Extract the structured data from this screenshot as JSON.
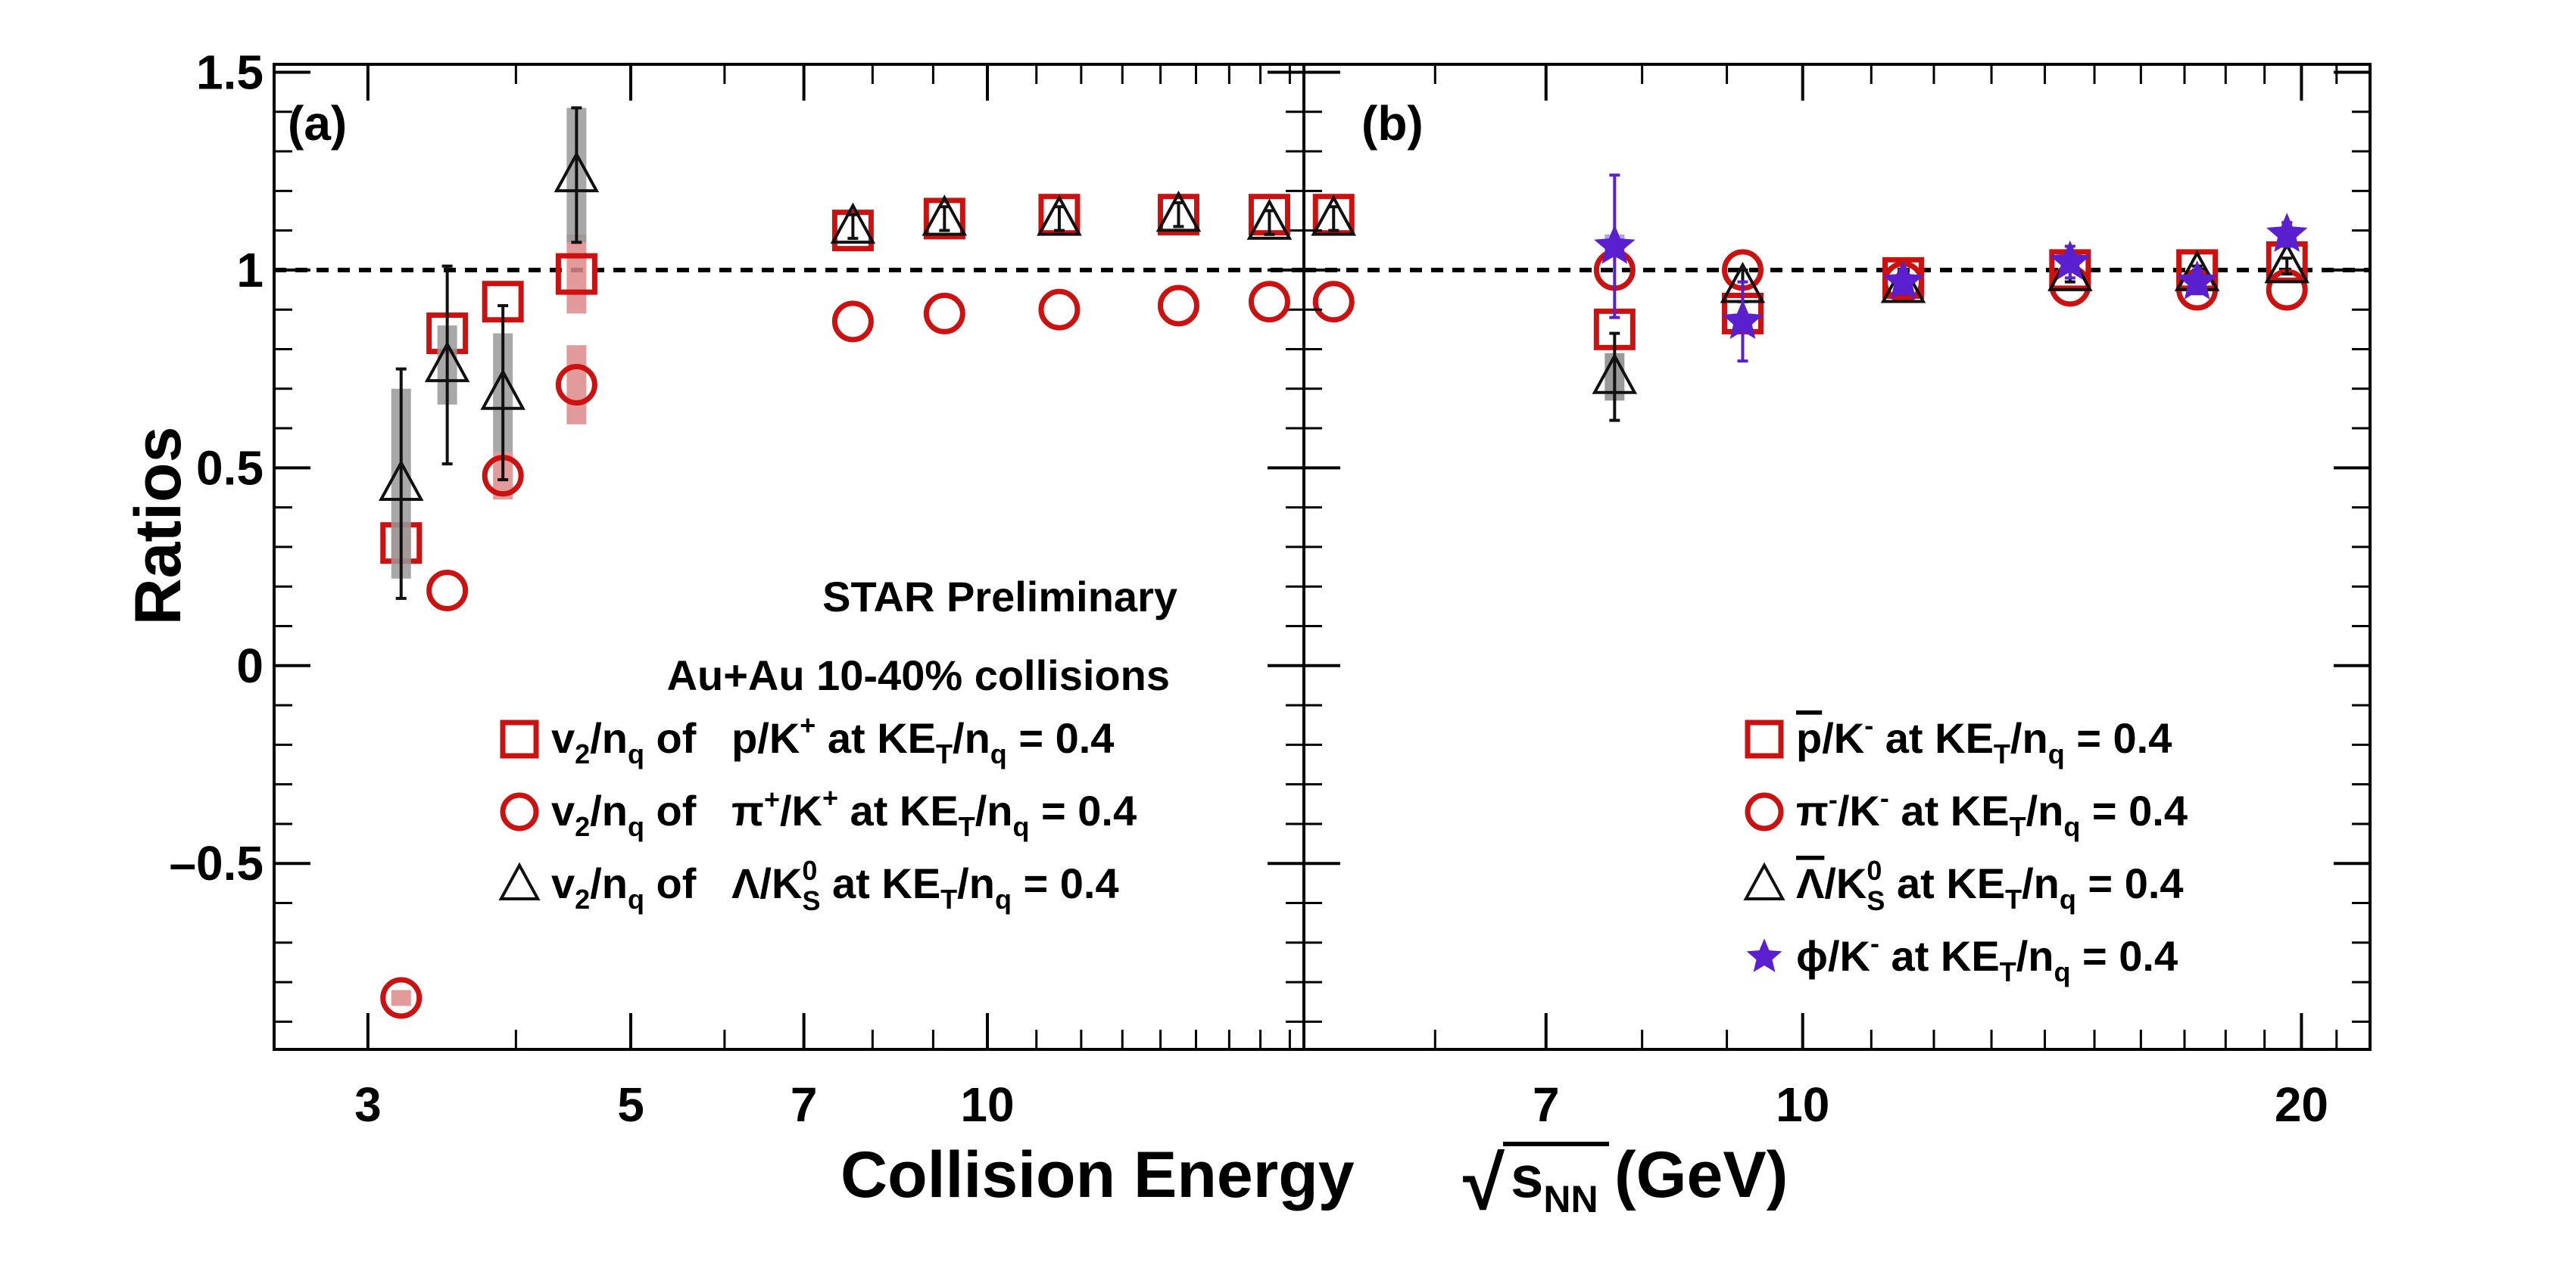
{
  "chart_data": [
    {
      "type": "scatter",
      "panel_label": "(a)",
      "xscale": "log",
      "xlim": [
        2.5,
        18.5
      ],
      "ylim": [
        -0.97,
        1.52
      ],
      "x_ticks": [
        {
          "v": 3,
          "label": "3"
        },
        {
          "v": 5,
          "label": "5"
        },
        {
          "v": 7,
          "label": "7"
        },
        {
          "v": 10,
          "label": "10"
        }
      ],
      "x_minor_ticks": [
        4,
        6,
        8,
        9,
        11,
        12,
        13,
        14,
        15,
        16,
        17,
        18
      ],
      "y_ticks": [
        {
          "v": 1.5,
          "label": "1.5"
        },
        {
          "v": 1,
          "label": "1"
        },
        {
          "v": 0.5,
          "label": "0.5"
        },
        {
          "v": 0,
          "label": "0"
        },
        {
          "v": -0.5,
          "label": "–0.5"
        }
      ],
      "reference_line": 1,
      "annotations": [
        "STAR Preliminary",
        "Au+Au 10-40% collisions"
      ],
      "series": [
        {
          "marker": "square",
          "color": "#cc1111",
          "syst_color": "#dd8888",
          "legend": {
            "lead": "v",
            "lead_sub": "2",
            "lead_mid": "/n",
            "lead_sub2": "q",
            "of": " of",
            "num": "p",
            "num_sup": "",
            "num_sub": "",
            "mid": "/K",
            "mid_sup": "+",
            "mid_sub": "",
            "tail": " at KE",
            "tail_sub": "T",
            "tail2": "/n",
            "tail2_sub": "q",
            "tail3": " = 0.4"
          },
          "points": [
            {
              "x": 3.2,
              "y": 0.31,
              "err": 0.0,
              "sys": 0.05
            },
            {
              "x": 3.5,
              "y": 0.84,
              "err": 0.0,
              "sys": 0.0
            },
            {
              "x": 3.9,
              "y": 0.92,
              "err": 0.0,
              "sys": 0.0
            },
            {
              "x": 4.5,
              "y": 0.99,
              "err": 0.0,
              "sys": 0.1
            },
            {
              "x": 7.7,
              "y": 1.1,
              "err": 0.0,
              "sys": 0.0
            },
            {
              "x": 9.2,
              "y": 1.13,
              "err": 0.0,
              "sys": 0.0
            },
            {
              "x": 11.5,
              "y": 1.14,
              "err": 0.0,
              "sys": 0.0
            },
            {
              "x": 14.5,
              "y": 1.14,
              "err": 0.0,
              "sys": 0.0
            },
            {
              "x": 17.3,
              "y": 1.14,
              "err": 0.0,
              "sys": 0.0
            },
            {
              "x": 19.6,
              "y": 1.14,
              "err": 0.0,
              "sys": 0.0
            }
          ]
        },
        {
          "marker": "circle",
          "color": "#cc1111",
          "syst_color": "#dd8888",
          "legend": {
            "lead": "v",
            "lead_sub": "2",
            "lead_mid": "/n",
            "lead_sub2": "q",
            "of": " of",
            "num": "π",
            "num_sup": "+",
            "num_sub": "",
            "mid": "/K",
            "mid_sup": "+",
            "mid_sub": "",
            "tail": " at KE",
            "tail_sub": "T",
            "tail2": "/n",
            "tail2_sub": "q",
            "tail3": " = 0.4"
          },
          "points": [
            {
              "x": 3.2,
              "y": -0.84,
              "err": 0.0,
              "sys": 0.02
            },
            {
              "x": 3.5,
              "y": 0.19,
              "err": 0.0,
              "sys": 0.0
            },
            {
              "x": 3.9,
              "y": 0.48,
              "err": 0.0,
              "sys": 0.06
            },
            {
              "x": 4.5,
              "y": 0.71,
              "err": 0.0,
              "sys": 0.1
            },
            {
              "x": 7.7,
              "y": 0.87,
              "err": 0.0,
              "sys": 0.0
            },
            {
              "x": 9.2,
              "y": 0.89,
              "err": 0.0,
              "sys": 0.0
            },
            {
              "x": 11.5,
              "y": 0.9,
              "err": 0.0,
              "sys": 0.0
            },
            {
              "x": 14.5,
              "y": 0.91,
              "err": 0.0,
              "sys": 0.0
            },
            {
              "x": 17.3,
              "y": 0.92,
              "err": 0.0,
              "sys": 0.0
            },
            {
              "x": 19.6,
              "y": 0.92,
              "err": 0.0,
              "sys": 0.0
            }
          ]
        },
        {
          "marker": "triangle",
          "color": "#111111",
          "syst_color": "#999999",
          "legend": {
            "lead": "v",
            "lead_sub": "2",
            "lead_mid": "/n",
            "lead_sub2": "q",
            "of": " of",
            "num": "Λ",
            "num_sup": "",
            "num_sub": "",
            "mid": "/K",
            "mid_sup": "0",
            "mid_sub": "S",
            "tail": " at KE",
            "tail_sub": "T",
            "tail2": "/n",
            "tail2_sub": "q",
            "tail3": " = 0.4"
          },
          "points": [
            {
              "x": 3.2,
              "y": 0.46,
              "err": 0.29,
              "sys": 0.24
            },
            {
              "x": 3.5,
              "y": 0.76,
              "err": 0.25,
              "sys": 0.1
            },
            {
              "x": 3.9,
              "y": 0.69,
              "err": 0.22,
              "sys": 0.15
            },
            {
              "x": 4.5,
              "y": 1.24,
              "err": 0.17,
              "sys": 0.17
            },
            {
              "x": 7.7,
              "y": 1.11,
              "err": 0.03,
              "sys": 0.0
            },
            {
              "x": 9.2,
              "y": 1.13,
              "err": 0.03,
              "sys": 0.0
            },
            {
              "x": 11.5,
              "y": 1.13,
              "err": 0.03,
              "sys": 0.0
            },
            {
              "x": 14.5,
              "y": 1.14,
              "err": 0.03,
              "sys": 0.0
            },
            {
              "x": 17.3,
              "y": 1.12,
              "err": 0.03,
              "sys": 0.0
            },
            {
              "x": 19.6,
              "y": 1.13,
              "err": 0.03,
              "sys": 0.0
            }
          ]
        }
      ]
    },
    {
      "type": "scatter",
      "panel_label": "(b)",
      "xscale": "log",
      "xlim": [
        5.0,
        22.0
      ],
      "ylim": [
        -0.97,
        1.52
      ],
      "x_ticks": [
        {
          "v": 7,
          "label": "7"
        },
        {
          "v": 10,
          "label": "10"
        },
        {
          "v": 20,
          "label": "20"
        }
      ],
      "x_minor_ticks": [
        6,
        8,
        9,
        11,
        12,
        13,
        14,
        15,
        16,
        17,
        18,
        19,
        21
      ],
      "y_ticks": [
        {
          "v": 1.5,
          "label": ""
        },
        {
          "v": 1,
          "label": ""
        },
        {
          "v": 0.5,
          "label": ""
        },
        {
          "v": 0,
          "label": ""
        },
        {
          "v": -0.5,
          "label": ""
        }
      ],
      "reference_line": 1,
      "series": [
        {
          "marker": "square",
          "color": "#cc1111",
          "syst_color": "#dd8888",
          "legend": {
            "num": "p",
            "num_bar": true,
            "num_sup": "",
            "num_sub": "",
            "mid": "/K",
            "mid_sup": "-",
            "mid_sub": "",
            "tail": "  at KE",
            "tail_sub": "T",
            "tail2": "/n",
            "tail2_sub": "q",
            "tail3": " = 0.4"
          },
          "points": [
            {
              "x": 7.7,
              "y": 0.85,
              "err": 0.0,
              "sys": 0.0
            },
            {
              "x": 9.2,
              "y": 0.89,
              "err": 0.0,
              "sys": 0.0
            },
            {
              "x": 11.5,
              "y": 0.98,
              "err": 0.0,
              "sys": 0.0
            },
            {
              "x": 14.5,
              "y": 1.0,
              "err": 0.0,
              "sys": 0.0
            },
            {
              "x": 17.3,
              "y": 1.0,
              "err": 0.0,
              "sys": 0.0
            },
            {
              "x": 19.6,
              "y": 1.02,
              "err": 0.0,
              "sys": 0.0
            }
          ]
        },
        {
          "marker": "circle",
          "color": "#cc1111",
          "syst_color": "#dd8888",
          "legend": {
            "num": "π",
            "num_bar": false,
            "num_sup": "-",
            "num_sub": "",
            "mid": "/K",
            "mid_sup": "-",
            "mid_sub": "",
            "tail": " at KE",
            "tail_sub": "T",
            "tail2": "/n",
            "tail2_sub": "q",
            "tail3": " = 0.4"
          },
          "points": [
            {
              "x": 7.7,
              "y": 1.0,
              "err": 0.0,
              "sys": 0.0
            },
            {
              "x": 9.2,
              "y": 1.0,
              "err": 0.0,
              "sys": 0.0
            },
            {
              "x": 11.5,
              "y": 0.97,
              "err": 0.0,
              "sys": 0.0
            },
            {
              "x": 14.5,
              "y": 0.96,
              "err": 0.0,
              "sys": 0.0
            },
            {
              "x": 17.3,
              "y": 0.95,
              "err": 0.0,
              "sys": 0.0
            },
            {
              "x": 19.6,
              "y": 0.95,
              "err": 0.0,
              "sys": 0.0
            }
          ]
        },
        {
          "marker": "triangle",
          "color": "#111111",
          "syst_color": "#888888",
          "legend": {
            "num": "Λ",
            "num_bar": true,
            "num_sup": "",
            "num_sub": "",
            "mid": "/K",
            "mid_sup": "0",
            "mid_sub": "S",
            "tail": " at KE",
            "tail_sub": "T",
            "tail2": "/n",
            "tail2_sub": "q",
            "tail3": " = 0.4"
          },
          "points": [
            {
              "x": 7.7,
              "y": 0.73,
              "err": 0.11,
              "sys": 0.06
            },
            {
              "x": 9.2,
              "y": 0.96,
              "err": 0.04,
              "sys": 0.0
            },
            {
              "x": 11.5,
              "y": 0.96,
              "err": 0.02,
              "sys": 0.0
            },
            {
              "x": 14.5,
              "y": 0.99,
              "err": 0.02,
              "sys": 0.0
            },
            {
              "x": 17.3,
              "y": 0.99,
              "err": 0.02,
              "sys": 0.0
            },
            {
              "x": 19.6,
              "y": 1.01,
              "err": 0.02,
              "sys": 0.0
            }
          ]
        },
        {
          "marker": "star",
          "color": "#5a1fcf",
          "syst_color": "#9e97ee",
          "legend": {
            "num": "ϕ",
            "num_bar": false,
            "num_sup": "",
            "num_sub": "",
            "mid": "/K",
            "mid_sup": "-",
            "mid_sub": "",
            "tail": "   at KE",
            "tail_sub": "T",
            "tail2": "/n",
            "tail2_sub": "q",
            "tail3": " = 0.4"
          },
          "points": [
            {
              "x": 7.7,
              "y": 1.06,
              "err": 0.18,
              "sys": 0.03
            },
            {
              "x": 9.2,
              "y": 0.87,
              "err": 0.1,
              "sys": 0.02
            },
            {
              "x": 11.5,
              "y": 0.97,
              "err": 0.03,
              "sys": 0.0
            },
            {
              "x": 14.5,
              "y": 1.02,
              "err": 0.04,
              "sys": 0.0
            },
            {
              "x": 17.3,
              "y": 0.97,
              "err": 0.03,
              "sys": 0.0
            },
            {
              "x": 19.6,
              "y": 1.09,
              "err": 0.03,
              "sys": 0.0
            }
          ]
        }
      ]
    }
  ],
  "ylabel": "Ratios",
  "xlabel": {
    "text": "Collision Energy",
    "sqrt_symbol": "√",
    "rad": "s",
    "rad_sub": "NN",
    "unit": " (GeV)"
  }
}
